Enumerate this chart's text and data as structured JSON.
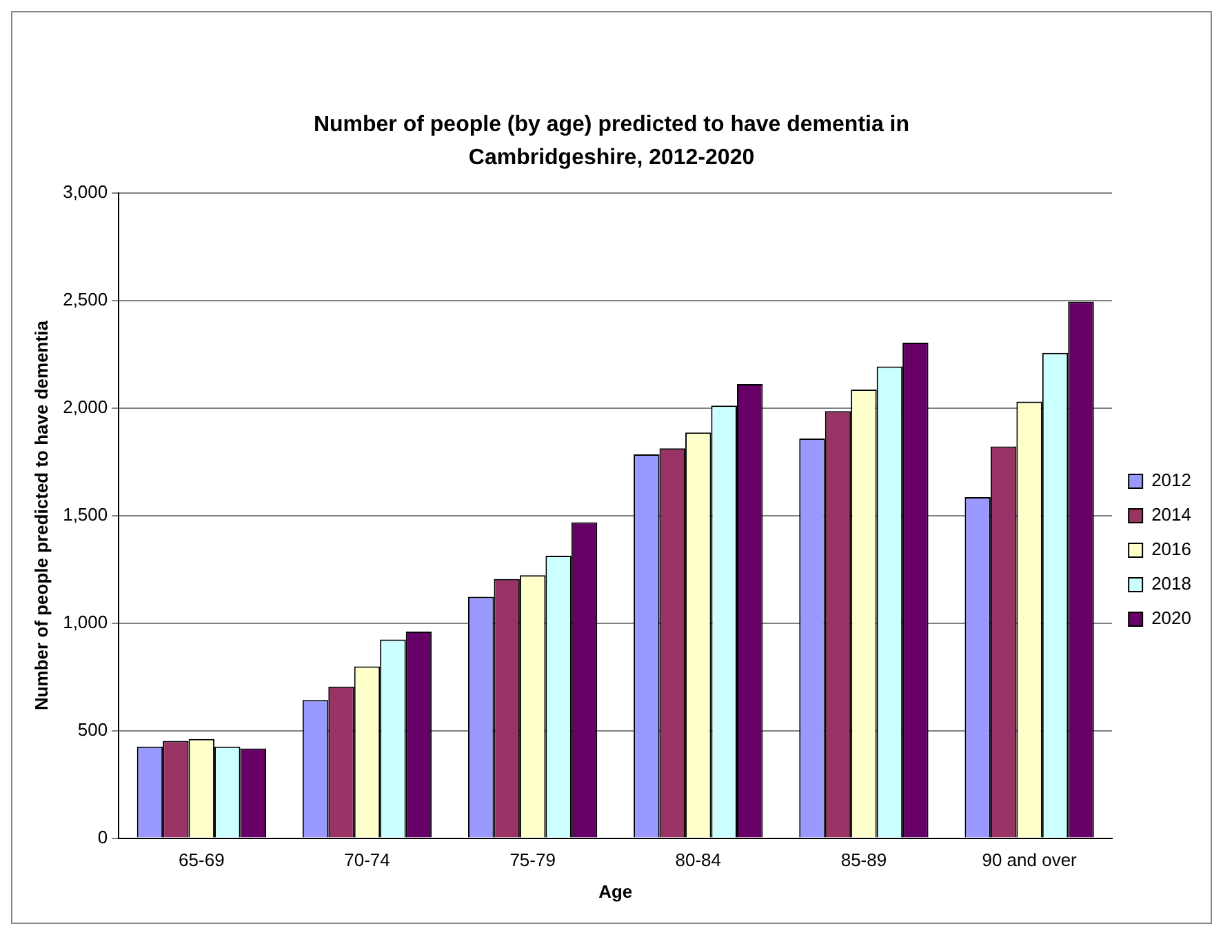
{
  "chart_data": {
    "type": "bar",
    "title": "Number of people (by age) predicted to have dementia in Cambridgeshire, 2012-2020",
    "xlabel": "Age",
    "ylabel": "Number of people predicted to have dementia",
    "categories": [
      "65-69",
      "70-74",
      "75-79",
      "80-84",
      "85-89",
      "90 and over"
    ],
    "series": [
      {
        "name": "2012",
        "color": "#9999ff",
        "values": [
          426,
          642,
          1122,
          1784,
          1858,
          1585
        ]
      },
      {
        "name": "2014",
        "color": "#993366",
        "values": [
          452,
          705,
          1205,
          1812,
          1985,
          1821
        ]
      },
      {
        "name": "2016",
        "color": "#ffffcc",
        "values": [
          461,
          798,
          1222,
          1886,
          2085,
          2029
        ]
      },
      {
        "name": "2018",
        "color": "#ccffff",
        "values": [
          426,
          923,
          1313,
          2011,
          2193,
          2256
        ]
      },
      {
        "name": "2020",
        "color": "#660066",
        "values": [
          417,
          960,
          1468,
          2111,
          2303,
          2494
        ]
      }
    ],
    "ylim": [
      0,
      3000
    ],
    "yticks": [
      {
        "value": 0,
        "label": "0"
      },
      {
        "value": 500,
        "label": "500"
      },
      {
        "value": 1000,
        "label": "1,000"
      },
      {
        "value": 1500,
        "label": "1,500"
      },
      {
        "value": 2000,
        "label": "2,000"
      },
      {
        "value": 2500,
        "label": "2,500"
      },
      {
        "value": 3000,
        "label": "3,000"
      }
    ],
    "grid": "y",
    "legend": "right"
  }
}
